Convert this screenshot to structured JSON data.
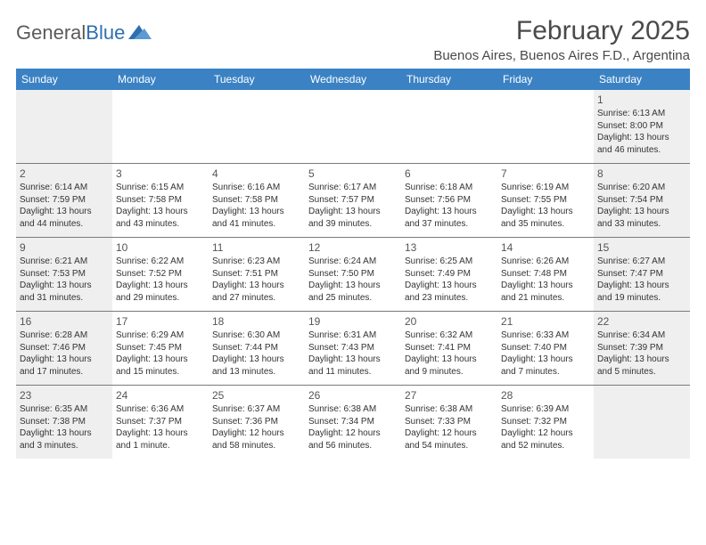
{
  "brand": {
    "part1": "General",
    "part2": "Blue"
  },
  "title": "February 2025",
  "location": "Buenos Aires, Buenos Aires F.D., Argentina",
  "colors": {
    "header_bg": "#3b82c4",
    "header_text": "#ffffff",
    "shaded_bg": "#efefef",
    "border": "#7a7a7a",
    "text": "#333333"
  },
  "weekdays": [
    "Sunday",
    "Monday",
    "Tuesday",
    "Wednesday",
    "Thursday",
    "Friday",
    "Saturday"
  ],
  "weeks": [
    [
      {
        "num": "",
        "sunrise": "",
        "sunset": "",
        "daylight": "",
        "shaded": true
      },
      {
        "num": "",
        "sunrise": "",
        "sunset": "",
        "daylight": "",
        "shaded": false
      },
      {
        "num": "",
        "sunrise": "",
        "sunset": "",
        "daylight": "",
        "shaded": false
      },
      {
        "num": "",
        "sunrise": "",
        "sunset": "",
        "daylight": "",
        "shaded": false
      },
      {
        "num": "",
        "sunrise": "",
        "sunset": "",
        "daylight": "",
        "shaded": false
      },
      {
        "num": "",
        "sunrise": "",
        "sunset": "",
        "daylight": "",
        "shaded": false
      },
      {
        "num": "1",
        "sunrise": "Sunrise: 6:13 AM",
        "sunset": "Sunset: 8:00 PM",
        "daylight": "Daylight: 13 hours and 46 minutes.",
        "shaded": true
      }
    ],
    [
      {
        "num": "2",
        "sunrise": "Sunrise: 6:14 AM",
        "sunset": "Sunset: 7:59 PM",
        "daylight": "Daylight: 13 hours and 44 minutes.",
        "shaded": true
      },
      {
        "num": "3",
        "sunrise": "Sunrise: 6:15 AM",
        "sunset": "Sunset: 7:58 PM",
        "daylight": "Daylight: 13 hours and 43 minutes.",
        "shaded": false
      },
      {
        "num": "4",
        "sunrise": "Sunrise: 6:16 AM",
        "sunset": "Sunset: 7:58 PM",
        "daylight": "Daylight: 13 hours and 41 minutes.",
        "shaded": false
      },
      {
        "num": "5",
        "sunrise": "Sunrise: 6:17 AM",
        "sunset": "Sunset: 7:57 PM",
        "daylight": "Daylight: 13 hours and 39 minutes.",
        "shaded": false
      },
      {
        "num": "6",
        "sunrise": "Sunrise: 6:18 AM",
        "sunset": "Sunset: 7:56 PM",
        "daylight": "Daylight: 13 hours and 37 minutes.",
        "shaded": false
      },
      {
        "num": "7",
        "sunrise": "Sunrise: 6:19 AM",
        "sunset": "Sunset: 7:55 PM",
        "daylight": "Daylight: 13 hours and 35 minutes.",
        "shaded": false
      },
      {
        "num": "8",
        "sunrise": "Sunrise: 6:20 AM",
        "sunset": "Sunset: 7:54 PM",
        "daylight": "Daylight: 13 hours and 33 minutes.",
        "shaded": true
      }
    ],
    [
      {
        "num": "9",
        "sunrise": "Sunrise: 6:21 AM",
        "sunset": "Sunset: 7:53 PM",
        "daylight": "Daylight: 13 hours and 31 minutes.",
        "shaded": true
      },
      {
        "num": "10",
        "sunrise": "Sunrise: 6:22 AM",
        "sunset": "Sunset: 7:52 PM",
        "daylight": "Daylight: 13 hours and 29 minutes.",
        "shaded": false
      },
      {
        "num": "11",
        "sunrise": "Sunrise: 6:23 AM",
        "sunset": "Sunset: 7:51 PM",
        "daylight": "Daylight: 13 hours and 27 minutes.",
        "shaded": false
      },
      {
        "num": "12",
        "sunrise": "Sunrise: 6:24 AM",
        "sunset": "Sunset: 7:50 PM",
        "daylight": "Daylight: 13 hours and 25 minutes.",
        "shaded": false
      },
      {
        "num": "13",
        "sunrise": "Sunrise: 6:25 AM",
        "sunset": "Sunset: 7:49 PM",
        "daylight": "Daylight: 13 hours and 23 minutes.",
        "shaded": false
      },
      {
        "num": "14",
        "sunrise": "Sunrise: 6:26 AM",
        "sunset": "Sunset: 7:48 PM",
        "daylight": "Daylight: 13 hours and 21 minutes.",
        "shaded": false
      },
      {
        "num": "15",
        "sunrise": "Sunrise: 6:27 AM",
        "sunset": "Sunset: 7:47 PM",
        "daylight": "Daylight: 13 hours and 19 minutes.",
        "shaded": true
      }
    ],
    [
      {
        "num": "16",
        "sunrise": "Sunrise: 6:28 AM",
        "sunset": "Sunset: 7:46 PM",
        "daylight": "Daylight: 13 hours and 17 minutes.",
        "shaded": true
      },
      {
        "num": "17",
        "sunrise": "Sunrise: 6:29 AM",
        "sunset": "Sunset: 7:45 PM",
        "daylight": "Daylight: 13 hours and 15 minutes.",
        "shaded": false
      },
      {
        "num": "18",
        "sunrise": "Sunrise: 6:30 AM",
        "sunset": "Sunset: 7:44 PM",
        "daylight": "Daylight: 13 hours and 13 minutes.",
        "shaded": false
      },
      {
        "num": "19",
        "sunrise": "Sunrise: 6:31 AM",
        "sunset": "Sunset: 7:43 PM",
        "daylight": "Daylight: 13 hours and 11 minutes.",
        "shaded": false
      },
      {
        "num": "20",
        "sunrise": "Sunrise: 6:32 AM",
        "sunset": "Sunset: 7:41 PM",
        "daylight": "Daylight: 13 hours and 9 minutes.",
        "shaded": false
      },
      {
        "num": "21",
        "sunrise": "Sunrise: 6:33 AM",
        "sunset": "Sunset: 7:40 PM",
        "daylight": "Daylight: 13 hours and 7 minutes.",
        "shaded": false
      },
      {
        "num": "22",
        "sunrise": "Sunrise: 6:34 AM",
        "sunset": "Sunset: 7:39 PM",
        "daylight": "Daylight: 13 hours and 5 minutes.",
        "shaded": true
      }
    ],
    [
      {
        "num": "23",
        "sunrise": "Sunrise: 6:35 AM",
        "sunset": "Sunset: 7:38 PM",
        "daylight": "Daylight: 13 hours and 3 minutes.",
        "shaded": true
      },
      {
        "num": "24",
        "sunrise": "Sunrise: 6:36 AM",
        "sunset": "Sunset: 7:37 PM",
        "daylight": "Daylight: 13 hours and 1 minute.",
        "shaded": false
      },
      {
        "num": "25",
        "sunrise": "Sunrise: 6:37 AM",
        "sunset": "Sunset: 7:36 PM",
        "daylight": "Daylight: 12 hours and 58 minutes.",
        "shaded": false
      },
      {
        "num": "26",
        "sunrise": "Sunrise: 6:38 AM",
        "sunset": "Sunset: 7:34 PM",
        "daylight": "Daylight: 12 hours and 56 minutes.",
        "shaded": false
      },
      {
        "num": "27",
        "sunrise": "Sunrise: 6:38 AM",
        "sunset": "Sunset: 7:33 PM",
        "daylight": "Daylight: 12 hours and 54 minutes.",
        "shaded": false
      },
      {
        "num": "28",
        "sunrise": "Sunrise: 6:39 AM",
        "sunset": "Sunset: 7:32 PM",
        "daylight": "Daylight: 12 hours and 52 minutes.",
        "shaded": false
      },
      {
        "num": "",
        "sunrise": "",
        "sunset": "",
        "daylight": "",
        "shaded": true
      }
    ]
  ]
}
